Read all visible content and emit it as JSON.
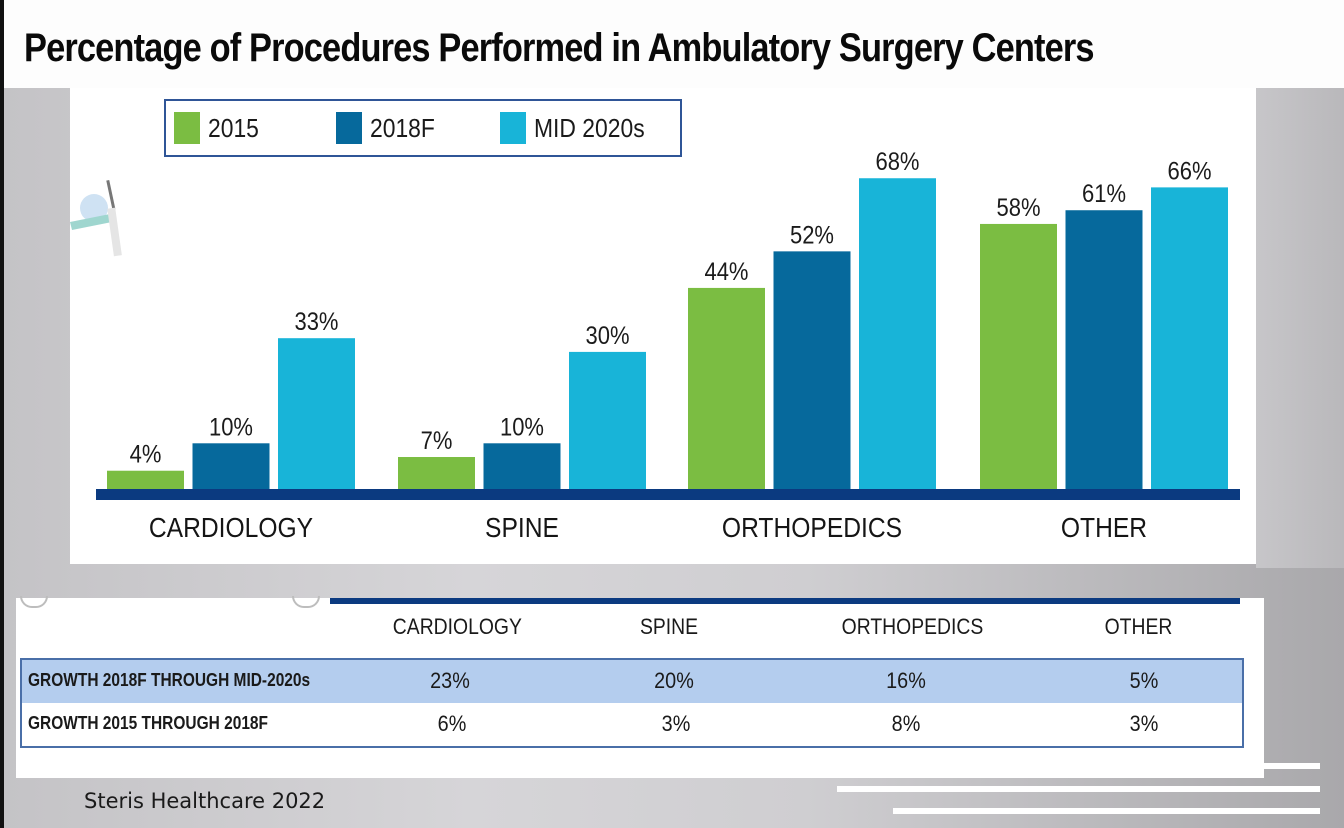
{
  "title": "Percentage of Procedures Performed in Ambulatory Surgery Centers",
  "footer": "Steris Healthcare 2022",
  "colors": {
    "2015": "#7bbd42",
    "2018F": "#06699c",
    "MID 2020s": "#18b4d8",
    "axis": "#0b3a80",
    "table_highlight": "#b4cdee"
  },
  "chart_data": {
    "type": "bar",
    "title": "Percentage of Procedures Performed in Ambulatory Surgery Centers",
    "xlabel": "",
    "ylabel": "",
    "ylim": [
      0,
      70
    ],
    "grid": false,
    "legend_position": "top-left",
    "categories": [
      "CARDIOLOGY",
      "SPINE",
      "ORTHOPEDICS",
      "OTHER"
    ],
    "series": [
      {
        "name": "2015",
        "values": [
          4,
          7,
          44,
          58
        ],
        "labels": [
          "4%",
          "7%",
          "44%",
          "58%"
        ]
      },
      {
        "name": "2018F",
        "values": [
          10,
          10,
          52,
          61
        ],
        "labels": [
          "10%",
          "10%",
          "52%",
          "61%"
        ]
      },
      {
        "name": "MID 2020s",
        "values": [
          33,
          30,
          68,
          66
        ],
        "labels": [
          "33%",
          "30%",
          "68%",
          "66%"
        ]
      }
    ]
  },
  "growth_table": {
    "columns": [
      "CARDIOLOGY",
      "SPINE",
      "ORTHOPEDICS",
      "OTHER"
    ],
    "rows": [
      {
        "label": "GROWTH 2018F THROUGH MID-2020s",
        "values": [
          "23%",
          "20%",
          "16%",
          "5%"
        ],
        "highlighted": true
      },
      {
        "label": "GROWTH 2015 THROUGH 2018F",
        "values": [
          "6%",
          "3%",
          "8%",
          "3%"
        ],
        "highlighted": false
      }
    ]
  }
}
